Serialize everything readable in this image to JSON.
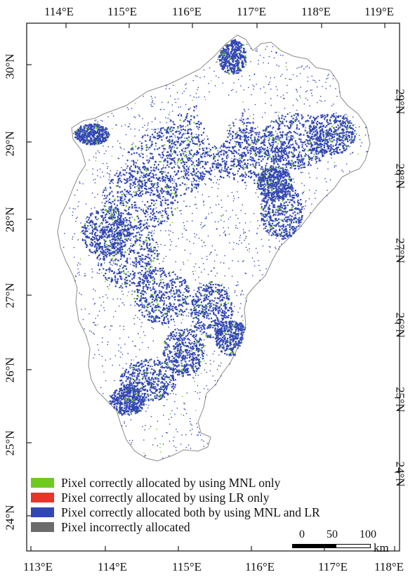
{
  "map": {
    "top_lon_labels": [
      "114°E",
      "115°E",
      "116°E",
      "117°E",
      "118°E",
      "119°E"
    ],
    "bottom_lon_labels": [
      "113°E",
      "114°E",
      "115°E",
      "116°E",
      "117°E",
      "118°E"
    ],
    "left_lat_labels": [
      "30°N",
      "29°N",
      "28°N",
      "27°N",
      "26°N",
      "25°N",
      "24°N"
    ],
    "right_lat_labels": [
      "29°N",
      "28°N",
      "27°N",
      "26°N",
      "25°N",
      "24°N"
    ]
  },
  "legend": {
    "items": [
      {
        "label": "Pixel correctly allocated by using MNL only",
        "color": "#6fca1f"
      },
      {
        "label": "Pixel correctly allocated by using LR only",
        "color": "#e8352a"
      },
      {
        "label": "Pixel correctly allocated both by using MNL and LR",
        "color": "#3246b4"
      },
      {
        "label": "Pixel incorrectly allocated",
        "color": "#6b6b6b"
      }
    ]
  },
  "scale_bar": {
    "labels": [
      "0",
      "50",
      "100"
    ],
    "unit": "km"
  },
  "colors": {
    "pixel_both": "#3246b4",
    "pixel_mnl": "#6fca1f",
    "outline": "#8a8a8a"
  }
}
